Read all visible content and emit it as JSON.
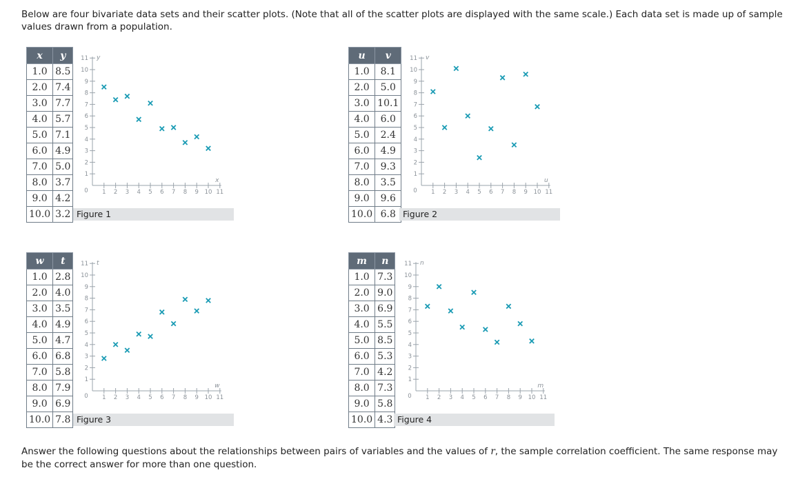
{
  "intro_text": "Below are four bivariate data sets and their scatter plots. (Note that all of the scatter plots are displayed with the same scale.) Each data set is made up of sample values drawn from a population.",
  "outro": {
    "before": "Answer the following questions about the relationships between pairs of variables and the values of ",
    "symbol": "r",
    "after": ", the sample correlation coefficient. The same response may be the correct answer for more than one question."
  },
  "style": {
    "marker_color": "#1a9bb4",
    "header_bg": "#5f6b78",
    "caption_bg": "#e1e3e5"
  },
  "chart_data": [
    {
      "type": "scatter",
      "title": "Figure 1",
      "xlabel": "x",
      "ylabel": "y",
      "xlim": [
        0,
        11
      ],
      "ylim": [
        0,
        11
      ],
      "ticks": [
        "1",
        "2",
        "3",
        "4",
        "5",
        "6",
        "7",
        "8",
        "9",
        "10",
        "11"
      ],
      "origin_label": "0",
      "table_headers": [
        "x",
        "y"
      ],
      "x_text": [
        "1.0",
        "2.0",
        "3.0",
        "4.0",
        "5.0",
        "6.0",
        "7.0",
        "8.0",
        "9.0",
        "10.0"
      ],
      "y_text": [
        "8.5",
        "7.4",
        "7.7",
        "5.7",
        "7.1",
        "4.9",
        "5.0",
        "3.7",
        "4.2",
        "3.2"
      ],
      "x": [
        1,
        2,
        3,
        4,
        5,
        6,
        7,
        8,
        9,
        10
      ],
      "y": [
        8.5,
        7.4,
        7.7,
        5.7,
        7.1,
        4.9,
        5.0,
        3.7,
        4.2,
        3.2
      ]
    },
    {
      "type": "scatter",
      "title": "Figure 2",
      "xlabel": "u",
      "ylabel": "v",
      "xlim": [
        0,
        11
      ],
      "ylim": [
        0,
        11
      ],
      "ticks": [
        "1",
        "2",
        "3",
        "4",
        "5",
        "6",
        "7",
        "8",
        "9",
        "10",
        "11"
      ],
      "origin_label": "0",
      "table_headers": [
        "u",
        "v"
      ],
      "x_text": [
        "1.0",
        "2.0",
        "3.0",
        "4.0",
        "5.0",
        "6.0",
        "7.0",
        "8.0",
        "9.0",
        "10.0"
      ],
      "y_text": [
        "8.1",
        "5.0",
        "10.1",
        "6.0",
        "2.4",
        "4.9",
        "9.3",
        "3.5",
        "9.6",
        "6.8"
      ],
      "x": [
        1,
        2,
        3,
        4,
        5,
        6,
        7,
        8,
        9,
        10
      ],
      "y": [
        8.1,
        5.0,
        10.1,
        6.0,
        2.4,
        4.9,
        9.3,
        3.5,
        9.6,
        6.8
      ]
    },
    {
      "type": "scatter",
      "title": "Figure 3",
      "xlabel": "w",
      "ylabel": "t",
      "xlim": [
        0,
        11
      ],
      "ylim": [
        0,
        11
      ],
      "ticks": [
        "1",
        "2",
        "3",
        "4",
        "5",
        "6",
        "7",
        "8",
        "9",
        "10",
        "11"
      ],
      "origin_label": "0",
      "table_headers": [
        "w",
        "t"
      ],
      "x_text": [
        "1.0",
        "2.0",
        "3.0",
        "4.0",
        "5.0",
        "6.0",
        "7.0",
        "8.0",
        "9.0",
        "10.0"
      ],
      "y_text": [
        "2.8",
        "4.0",
        "3.5",
        "4.9",
        "4.7",
        "6.8",
        "5.8",
        "7.9",
        "6.9",
        "7.8"
      ],
      "x": [
        1,
        2,
        3,
        4,
        5,
        6,
        7,
        8,
        9,
        10
      ],
      "y": [
        2.8,
        4.0,
        3.5,
        4.9,
        4.7,
        6.8,
        5.8,
        7.9,
        6.9,
        7.8
      ]
    },
    {
      "type": "scatter",
      "title": "Figure 4",
      "xlabel": "m",
      "ylabel": "n",
      "xlim": [
        0,
        11
      ],
      "ylim": [
        0,
        11
      ],
      "ticks": [
        "1",
        "2",
        "3",
        "4",
        "5",
        "6",
        "7",
        "8",
        "9",
        "10",
        "11"
      ],
      "origin_label": "0",
      "table_headers": [
        "m",
        "n"
      ],
      "x_text": [
        "1.0",
        "2.0",
        "3.0",
        "4.0",
        "5.0",
        "6.0",
        "7.0",
        "8.0",
        "9.0",
        "10.0"
      ],
      "y_text": [
        "7.3",
        "9.0",
        "6.9",
        "5.5",
        "8.5",
        "5.3",
        "4.2",
        "7.3",
        "5.8",
        "4.3"
      ],
      "x": [
        1,
        2,
        3,
        4,
        5,
        6,
        7,
        8,
        9,
        10
      ],
      "y": [
        7.3,
        9.0,
        6.9,
        5.5,
        8.5,
        5.3,
        4.2,
        7.3,
        5.8,
        4.3
      ]
    }
  ]
}
